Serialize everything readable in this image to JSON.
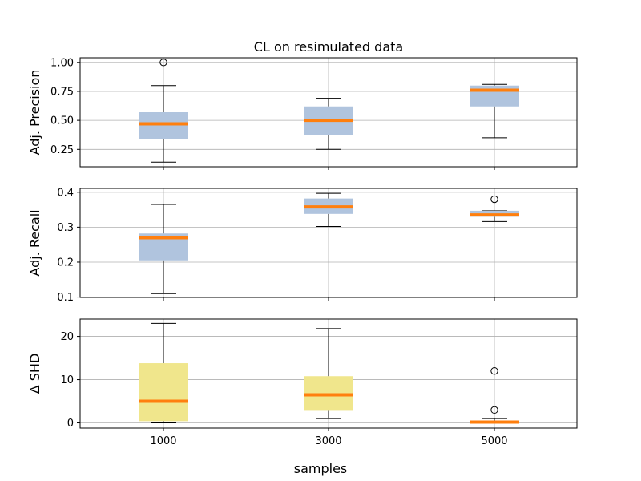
{
  "title": "CL on resimulated data",
  "xlabel": "samples",
  "chart_data": [
    {
      "type": "box",
      "ylabel": "Adj. Precision",
      "ylim": [
        0.1,
        1.04
      ],
      "yticks": [
        0.25,
        0.5,
        0.75,
        1.0
      ],
      "ytick_labels": [
        "0.25",
        "0.50",
        "0.75",
        "1.00"
      ],
      "box_color": "#b0c4de",
      "median_color": "#ff7f0e",
      "categories": [
        "1000",
        "3000",
        "5000"
      ],
      "boxes": [
        {
          "category": "1000",
          "whislo": 0.14,
          "q1": 0.34,
          "med": 0.47,
          "q3": 0.57,
          "whishi": 0.8,
          "fliers": [
            1.0
          ]
        },
        {
          "category": "3000",
          "whislo": 0.25,
          "q1": 0.37,
          "med": 0.5,
          "q3": 0.62,
          "whishi": 0.69,
          "fliers": []
        },
        {
          "category": "5000",
          "whislo": 0.35,
          "q1": 0.62,
          "med": 0.76,
          "q3": 0.8,
          "whishi": 0.81,
          "fliers": []
        }
      ]
    },
    {
      "type": "box",
      "ylabel": "Adj. Recall",
      "ylim": [
        0.099,
        0.411
      ],
      "yticks": [
        0.1,
        0.2,
        0.3,
        0.4
      ],
      "ytick_labels": [
        "0.1",
        "0.2",
        "0.3",
        "0.4"
      ],
      "box_color": "#b0c4de",
      "median_color": "#ff7f0e",
      "categories": [
        "1000",
        "3000",
        "5000"
      ],
      "boxes": [
        {
          "category": "1000",
          "whislo": 0.11,
          "q1": 0.205,
          "med": 0.27,
          "q3": 0.282,
          "whishi": 0.365,
          "fliers": []
        },
        {
          "category": "3000",
          "whislo": 0.302,
          "q1": 0.338,
          "med": 0.358,
          "q3": 0.382,
          "whishi": 0.397,
          "fliers": []
        },
        {
          "category": "5000",
          "whislo": 0.316,
          "q1": 0.33,
          "med": 0.335,
          "q3": 0.347,
          "whishi": 0.347,
          "fliers": [
            0.38
          ]
        }
      ]
    },
    {
      "type": "box",
      "ylabel": "Δ SHD",
      "ylim": [
        -1.2,
        24
      ],
      "yticks": [
        0,
        10,
        20
      ],
      "ytick_labels": [
        "0",
        "10",
        "20"
      ],
      "box_color": "#f0e68c",
      "median_color": "#ff7f0e",
      "categories": [
        "1000",
        "3000",
        "5000"
      ],
      "xtick_labels": [
        "1000",
        "3000",
        "5000"
      ],
      "boxes": [
        {
          "category": "1000",
          "whislo": 0,
          "q1": 0.4,
          "med": 5,
          "q3": 13.8,
          "whishi": 23,
          "fliers": []
        },
        {
          "category": "3000",
          "whislo": 1,
          "q1": 2.8,
          "med": 6.5,
          "q3": 10.8,
          "whishi": 21.8,
          "fliers": []
        },
        {
          "category": "5000",
          "whislo": 0,
          "q1": 0,
          "med": 0.2,
          "q3": 0.4,
          "whishi": 1,
          "fliers": [
            3,
            12
          ]
        }
      ]
    }
  ]
}
